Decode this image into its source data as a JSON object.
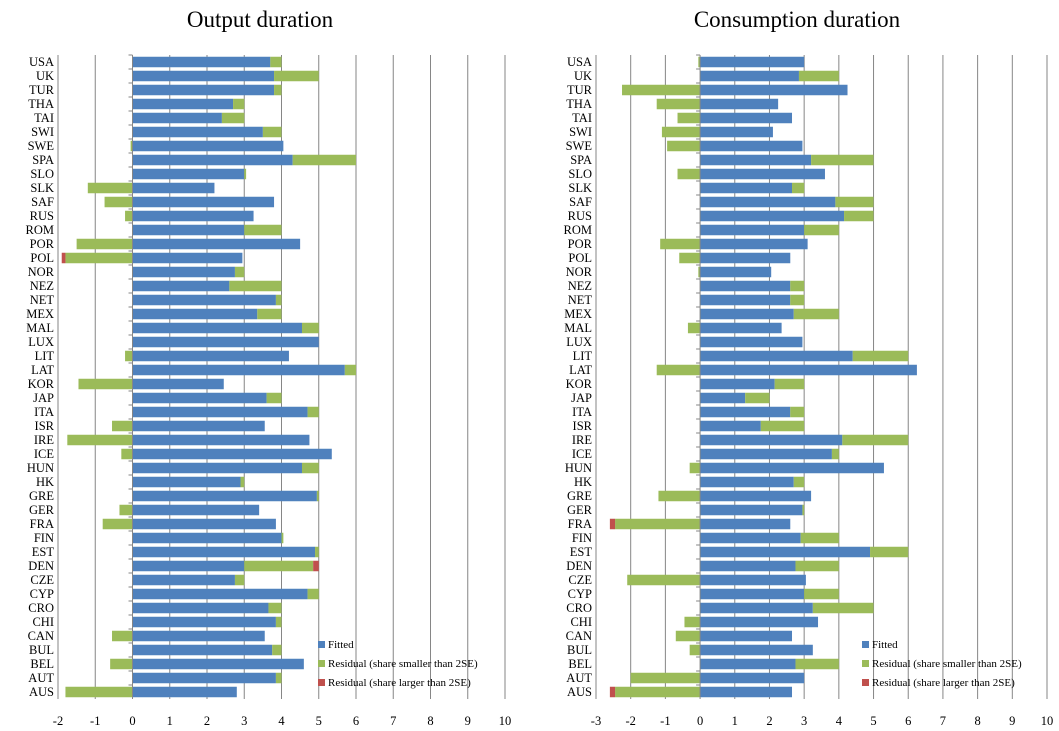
{
  "chart_data": [
    {
      "type": "bar",
      "orientation": "horizontal",
      "stacked": true,
      "title": "Output duration",
      "xlabel": "",
      "ylabel": "",
      "xlim": [
        -2,
        10
      ],
      "xticks": [
        -2,
        -1,
        0,
        1,
        2,
        3,
        4,
        5,
        6,
        7,
        8,
        9,
        10
      ],
      "grid": "vertical",
      "legend_position": "bottom-right",
      "categories": [
        "USA",
        "UK",
        "TUR",
        "THA",
        "TAI",
        "SWI",
        "SWE",
        "SPA",
        "SLO",
        "SLK",
        "SAF",
        "RUS",
        "ROM",
        "POR",
        "POL",
        "NOR",
        "NEZ",
        "NET",
        "MEX",
        "MAL",
        "LUX",
        "LIT",
        "LAT",
        "KOR",
        "JAP",
        "ITA",
        "ISR",
        "IRE",
        "ICE",
        "HUN",
        "HK",
        "GRE",
        "GER",
        "FRA",
        "FIN",
        "EST",
        "DEN",
        "CZE",
        "CYP",
        "CRO",
        "CHI",
        "CAN",
        "BUL",
        "BEL",
        "AUT",
        "AUS"
      ],
      "series": [
        {
          "name": "Fitted",
          "color": "#4f81bd",
          "values": [
            3.7,
            3.8,
            3.8,
            2.7,
            2.4,
            3.5,
            4.05,
            4.3,
            3.0,
            2.2,
            3.8,
            3.25,
            3.0,
            4.5,
            2.95,
            2.75,
            2.6,
            3.85,
            3.35,
            4.55,
            5.0,
            4.2,
            5.7,
            2.45,
            3.6,
            4.7,
            3.55,
            4.75,
            5.35,
            4.55,
            2.9,
            4.95,
            3.4,
            3.85,
            4.0,
            4.9,
            3.0,
            2.75,
            4.7,
            3.65,
            3.85,
            3.55,
            3.75,
            4.6,
            3.85,
            2.8
          ]
        },
        {
          "name": "Residual (share smaller than 2SE)",
          "color": "#9bbb59",
          "values": [
            0.3,
            1.2,
            0.2,
            0.3,
            0.6,
            0.5,
            -0.05,
            1.7,
            0.05,
            -1.2,
            -0.75,
            -0.2,
            1.0,
            -1.5,
            -1.8,
            0.25,
            1.4,
            0.15,
            0.65,
            0.45,
            0.0,
            -0.2,
            0.3,
            -1.45,
            0.4,
            0.3,
            -0.55,
            -1.75,
            -0.3,
            0.45,
            0.1,
            0.05,
            -0.35,
            -0.8,
            0.05,
            0.1,
            1.85,
            0.25,
            0.3,
            0.35,
            0.15,
            -0.55,
            0.25,
            -0.6,
            0.15,
            -1.8
          ]
        },
        {
          "name": "Residual (share larger than 2SE)",
          "color": "#c0504d",
          "values": [
            0,
            0,
            0,
            0,
            0,
            0,
            0,
            0,
            0,
            0,
            0,
            0,
            0,
            0,
            -0.1,
            0,
            0,
            0,
            0,
            0,
            0,
            0,
            0,
            0,
            0,
            0,
            0,
            0,
            0,
            0,
            0,
            0,
            0,
            0,
            0,
            0,
            0.15,
            0,
            0,
            0,
            0,
            0,
            0,
            0,
            0,
            0
          ]
        }
      ]
    },
    {
      "type": "bar",
      "orientation": "horizontal",
      "stacked": true,
      "title": "Consumption duration",
      "xlabel": "",
      "ylabel": "",
      "xlim": [
        -3,
        10
      ],
      "xticks": [
        -3,
        -2,
        -1,
        0,
        1,
        2,
        3,
        4,
        5,
        6,
        7,
        8,
        9,
        10
      ],
      "grid": "vertical",
      "legend_position": "bottom-right",
      "categories": [
        "USA",
        "UK",
        "TUR",
        "THA",
        "TAI",
        "SWI",
        "SWE",
        "SPA",
        "SLO",
        "SLK",
        "SAF",
        "RUS",
        "ROM",
        "POR",
        "POL",
        "NOR",
        "NEZ",
        "NET",
        "MEX",
        "MAL",
        "LUX",
        "LIT",
        "LAT",
        "KOR",
        "JAP",
        "ITA",
        "ISR",
        "IRE",
        "ICE",
        "HUN",
        "HK",
        "GRE",
        "GER",
        "FRA",
        "FIN",
        "EST",
        "DEN",
        "CZE",
        "CYP",
        "CRO",
        "CHI",
        "CAN",
        "BUL",
        "BEL",
        "AUT",
        "AUS"
      ],
      "series": [
        {
          "name": "Fitted",
          "color": "#4f81bd",
          "values": [
            3.0,
            2.85,
            4.25,
            2.25,
            2.65,
            2.1,
            2.95,
            3.2,
            3.6,
            2.65,
            3.9,
            4.15,
            3.0,
            3.1,
            2.6,
            2.05,
            2.6,
            2.6,
            2.7,
            2.35,
            2.95,
            4.4,
            6.25,
            2.15,
            1.3,
            2.6,
            1.75,
            4.1,
            3.8,
            5.3,
            2.7,
            3.2,
            2.95,
            2.6,
            2.9,
            4.9,
            2.75,
            3.05,
            3.0,
            3.25,
            3.4,
            2.65,
            3.25,
            2.75,
            3.0,
            2.65
          ]
        },
        {
          "name": "Residual (share smaller than 2SE)",
          "color": "#9bbb59",
          "values": [
            -0.05,
            1.15,
            -2.25,
            -1.25,
            -0.65,
            -1.1,
            -0.95,
            1.8,
            -0.65,
            0.35,
            1.1,
            0.85,
            1.0,
            -1.15,
            -0.6,
            -0.05,
            0.4,
            0.4,
            1.3,
            -0.35,
            0.0,
            1.6,
            -1.25,
            0.85,
            0.7,
            0.4,
            1.25,
            1.9,
            0.2,
            -0.3,
            0.3,
            -1.2,
            0.05,
            -2.45,
            1.1,
            1.1,
            1.25,
            -2.1,
            1.0,
            1.75,
            -0.45,
            -0.7,
            -0.3,
            1.25,
            -2.0,
            -2.45
          ]
        },
        {
          "name": "Residual (share larger than 2SE)",
          "color": "#c0504d",
          "values": [
            0,
            0,
            0,
            0,
            0,
            0,
            0,
            0,
            0,
            0,
            0,
            0,
            0,
            0,
            0,
            0,
            0,
            0,
            0,
            0,
            0,
            0,
            0,
            0,
            0,
            0,
            0,
            0,
            0,
            0,
            0,
            0,
            0,
            -0.15,
            0,
            0,
            0,
            0,
            0,
            0,
            0,
            0,
            0,
            0,
            0,
            -0.15
          ]
        }
      ]
    }
  ]
}
